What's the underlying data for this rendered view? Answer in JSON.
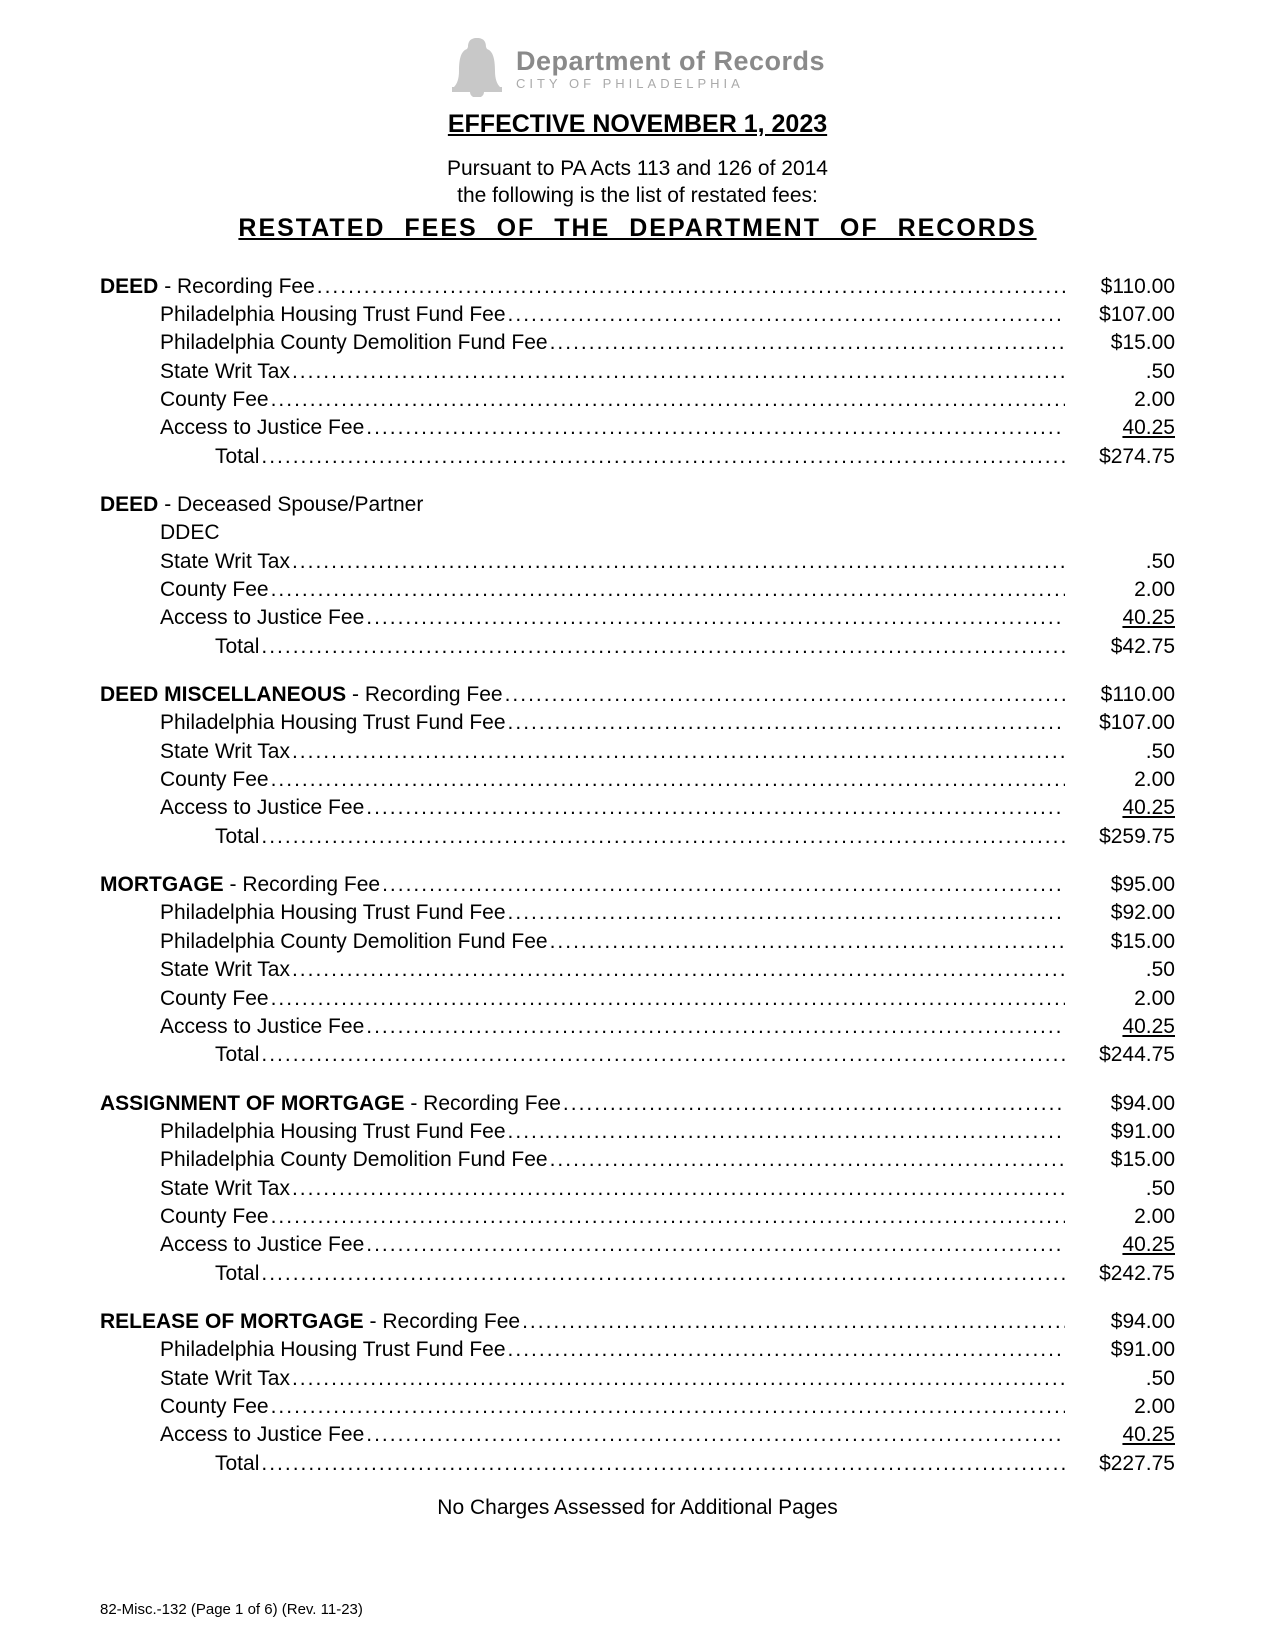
{
  "header": {
    "department_title": "Department of Records",
    "city_subtitle": "CITY OF PHILADELPHIA",
    "effective": "EFFECTIVE NOVEMBER 1, 2023",
    "preamble_line1": "Pursuant to PA Acts 113 and 126 of 2014",
    "preamble_line2": "the following is the list of restated fees:",
    "restated_title": "RESTATED FEES OF THE DEPARTMENT OF RECORDS",
    "bell_fill": "#c8c8c8"
  },
  "sections": {
    "deed": {
      "head_label_bold": "DEED",
      "head_label_rest": " - Recording Fee",
      "head_value": "$110.00",
      "rows": [
        {
          "label": "Philadelphia Housing Trust Fund Fee",
          "value": "$107.00"
        },
        {
          "label": "Philadelphia County Demolition Fund Fee",
          "value": "$15.00"
        },
        {
          "label": "State Writ Tax",
          "value": ".50"
        },
        {
          "label": "County Fee",
          "value": "2.00"
        },
        {
          "label": "Access to Justice Fee",
          "value": "40.25",
          "underline": true
        }
      ],
      "total_label": "Total",
      "total_value": "$274.75"
    },
    "deed_deceased": {
      "head_label_bold": "DEED",
      "head_label_rest": " - Deceased Spouse/Partner",
      "subtype": "DDEC",
      "rows": [
        {
          "label": "State Writ Tax",
          "value": ".50"
        },
        {
          "label": "County Fee",
          "value": "2.00"
        },
        {
          "label": "Access to Justice Fee",
          "value": "40.25",
          "underline": true
        }
      ],
      "total_label": "Total",
      "total_value": "$42.75"
    },
    "deed_misc": {
      "head_label_bold": "DEED MISCELLANEOUS",
      "head_label_rest": " - Recording Fee",
      "head_value": "$110.00",
      "rows": [
        {
          "label": "Philadelphia Housing Trust Fund Fee",
          "value": "$107.00"
        },
        {
          "label": "State Writ Tax",
          "value": ".50"
        },
        {
          "label": "County Fee",
          "value": "2.00"
        },
        {
          "label": "Access to Justice Fee",
          "value": "40.25",
          "underline": true
        }
      ],
      "total_label": "Total",
      "total_value": "$259.75"
    },
    "mortgage": {
      "head_label_bold": "MORTGAGE",
      "head_label_rest": "  -  Recording Fee",
      "head_value": "$95.00",
      "rows": [
        {
          "label": "Philadelphia Housing Trust Fund Fee",
          "value": "$92.00"
        },
        {
          "label": "Philadelphia County Demolition Fund Fee",
          "value": "$15.00"
        },
        {
          "label": "State Writ Tax",
          "value": ".50"
        },
        {
          "label": "County Fee",
          "value": "2.00"
        },
        {
          "label": "Access to Justice Fee",
          "value": "40.25",
          "underline": true
        }
      ],
      "total_label": "Total",
      "total_value": "$244.75"
    },
    "assignment": {
      "head_label_bold": "ASSIGNMENT OF MORTGAGE",
      "head_label_rest": " - Recording Fee",
      "head_value": "$94.00",
      "rows": [
        {
          "label": "Philadelphia Housing Trust Fund Fee",
          "value": "$91.00"
        },
        {
          "label": "Philadelphia County Demolition Fund Fee",
          "value": "$15.00"
        },
        {
          "label": "State Writ Tax",
          "value": ".50"
        },
        {
          "label": "County Fee",
          "value": "2.00"
        },
        {
          "label": "Access to Justice Fee",
          "value": "40.25",
          "underline": true
        }
      ],
      "total_label": "Total",
      "total_value": "$242.75"
    },
    "release": {
      "head_label_bold": "RELEASE OF MORTGAGE",
      "head_label_rest": " - Recording Fee",
      "head_value": "$94.00",
      "rows": [
        {
          "label": "Philadelphia Housing Trust Fund Fee",
          "value": "$91.00"
        },
        {
          "label": "State Writ Tax",
          "value": ".50"
        },
        {
          "label": "County Fee",
          "value": "2.00"
        },
        {
          "label": "Access to Justice Fee",
          "value": "40.25",
          "underline": true
        }
      ],
      "total_label": "Total",
      "total_value": "$227.75"
    }
  },
  "footer": {
    "no_charges_note": "No Charges Assessed for Additional Pages",
    "form_id": "82-Misc.-132 (Page 1 of 6)   (Rev. 11-23)"
  }
}
